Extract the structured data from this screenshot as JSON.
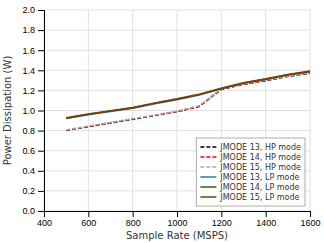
{
  "chart_data": {
    "type": "line",
    "xlabel": "Sample Rate (MSPS)",
    "ylabel": "Power Dissipation (W)",
    "x": [
      500,
      600,
      700,
      800,
      900,
      1000,
      1100,
      1200,
      1300,
      1400,
      1500,
      1600
    ],
    "series": [
      {
        "name": "JMODE 13, HP mode",
        "color": "#000000",
        "line_style": "dashed",
        "values": [
          0.8,
          0.84,
          0.875,
          0.912,
          0.95,
          0.988,
          1.04,
          1.21,
          1.26,
          1.295,
          1.34,
          1.37
        ]
      },
      {
        "name": "JMODE 14, HP mode",
        "color": "#ff0000",
        "line_style": "dashed",
        "values": [
          0.803,
          0.842,
          0.878,
          0.915,
          0.952,
          0.99,
          1.043,
          1.213,
          1.262,
          1.298,
          1.342,
          1.372
        ]
      },
      {
        "name": "JMODE 15, HP mode",
        "color": "#aaaaaa",
        "line_style": "dashed",
        "values": [
          0.806,
          0.845,
          0.881,
          0.918,
          0.955,
          0.993,
          1.046,
          1.216,
          1.265,
          1.301,
          1.345,
          1.374
        ]
      },
      {
        "name": "JMODE 13, LP mode",
        "color": "#2e75b6",
        "line_style": "solid",
        "values": [
          0.92,
          0.958,
          0.99,
          1.022,
          1.068,
          1.108,
          1.155,
          1.215,
          1.27,
          1.308,
          1.352,
          1.385
        ]
      },
      {
        "name": "JMODE 14, LP mode",
        "color": "#375623",
        "line_style": "solid",
        "values": [
          0.924,
          0.962,
          0.994,
          1.026,
          1.072,
          1.112,
          1.158,
          1.218,
          1.273,
          1.311,
          1.355,
          1.388
        ]
      },
      {
        "name": "JMODE 15, LP mode",
        "color": "#833c00",
        "line_style": "solid",
        "values": [
          0.928,
          0.966,
          0.998,
          1.03,
          1.076,
          1.116,
          1.162,
          1.222,
          1.277,
          1.315,
          1.359,
          1.392
        ]
      }
    ],
    "xlim": [
      400,
      1600
    ],
    "ylim": [
      0,
      2
    ],
    "xticks": [
      400,
      600,
      800,
      1000,
      1200,
      1400,
      1600
    ],
    "yticks": [
      {
        "value": 0,
        "label": "0.0"
      },
      0.2,
      0.4,
      0.6,
      0.8,
      {
        "value": 1.0,
        "label": "1.0"
      },
      1.2,
      1.4,
      1.6,
      1.8,
      {
        "value": 2.0,
        "label": "2.0"
      }
    ],
    "grid": true,
    "legend": "lower right"
  }
}
